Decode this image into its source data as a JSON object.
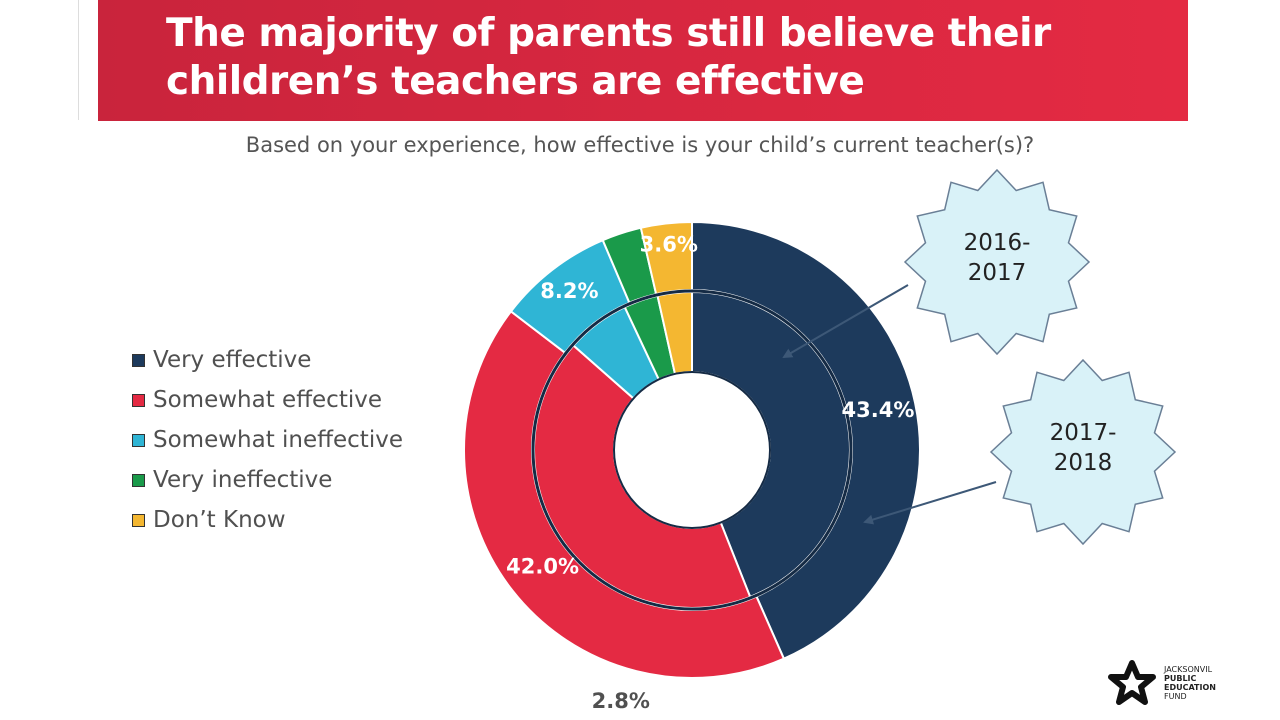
{
  "header": {
    "title_line1": "The majority of parents still believe their",
    "title_line2": "children’s teachers are effective"
  },
  "question": "Based on your experience, how effective is your child’s current teacher(s)?",
  "colors": {
    "very_effective": "#1d3a5c",
    "somewhat_effective": "#e42a43",
    "somewhat_ineffective": "#2fb5d5",
    "very_ineffective": "#1a9a4a",
    "dont_know": "#f4b731",
    "banner": "#e42a43",
    "callout_fill": "#d9f2f8"
  },
  "chart_data": {
    "type": "donut",
    "title": "",
    "categories": [
      "Very effective",
      "Somewhat effective",
      "Somewhat ineffective",
      "Very ineffective",
      "Don't Know"
    ],
    "series": [
      {
        "name": "2016-2017",
        "ring": "inner",
        "values": [
          44.0,
          42.5,
          6.5,
          3.5,
          3.5
        ]
      },
      {
        "name": "2017-2018",
        "ring": "outer",
        "values": [
          43.4,
          42.0,
          8.2,
          2.8,
          3.6
        ]
      }
    ],
    "data_labels": [
      "43.4%",
      "42.0%",
      "8.2%",
      "2.8%",
      "3.6%"
    ],
    "legend": "left",
    "callouts": [
      {
        "line1": "2016-",
        "line2": "2017",
        "ring": "inner"
      },
      {
        "line1": "2017-",
        "line2": "2018",
        "ring": "outer"
      }
    ]
  },
  "legend": {
    "items": [
      {
        "label": "Very effective",
        "color": "#1d3a5c"
      },
      {
        "label": "Somewhat effective",
        "color": "#e42a43"
      },
      {
        "label": "Somewhat ineffective",
        "color": "#2fb5d5"
      },
      {
        "label": "Very ineffective",
        "color": "#1a9a4a"
      },
      {
        "label": "Don’t Know",
        "color": "#f4b731"
      }
    ]
  },
  "brand": {
    "line1": "JACKSONVIL",
    "line2": "PUBLIC",
    "line3": "EDUCATION",
    "line4": "FUND",
    "logo_icon": "star-logo-icon"
  }
}
